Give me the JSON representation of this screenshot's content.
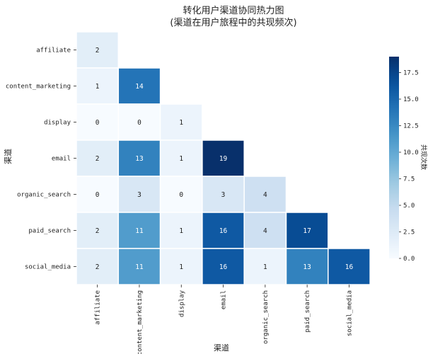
{
  "chart_data": {
    "type": "heatmap",
    "title": "转化用户渠道协同热力图",
    "subtitle": "(渠道在用户旅程中的共现频次)",
    "xlabel": "渠道",
    "ylabel": "渠道",
    "colorbar_label": "共现次数",
    "colormap": "Blues",
    "vmin": 0,
    "vmax": 19,
    "colorbar_ticks": [
      "0.0",
      "2.5",
      "5.0",
      "7.5",
      "10.0",
      "12.5",
      "15.0",
      "17.5"
    ],
    "rows": [
      "affiliate",
      "content_marketing",
      "display",
      "email",
      "organic_search",
      "paid_search",
      "social_media"
    ],
    "cols": [
      "affiliate",
      "content_marketing",
      "display",
      "email",
      "organic_search",
      "paid_search",
      "social_media"
    ],
    "values": [
      [
        2,
        null,
        null,
        null,
        null,
        null,
        null
      ],
      [
        1,
        14,
        null,
        null,
        null,
        null,
        null
      ],
      [
        0,
        0,
        1,
        null,
        null,
        null,
        null
      ],
      [
        2,
        13,
        1,
        19,
        null,
        null,
        null
      ],
      [
        0,
        3,
        0,
        3,
        4,
        null,
        null
      ],
      [
        2,
        11,
        1,
        16,
        4,
        17,
        null
      ],
      [
        2,
        11,
        1,
        16,
        1,
        13,
        16
      ]
    ],
    "mask": "upper-triangle"
  }
}
